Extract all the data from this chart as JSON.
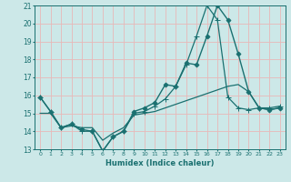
{
  "title": "",
  "xlabel": "Humidex (Indice chaleur)",
  "ylabel": "",
  "xlim": [
    -0.5,
    23.5
  ],
  "ylim": [
    13,
    21
  ],
  "yticks": [
    13,
    14,
    15,
    16,
    17,
    18,
    19,
    20,
    21
  ],
  "xticks": [
    0,
    1,
    2,
    3,
    4,
    5,
    6,
    7,
    8,
    9,
    10,
    11,
    12,
    13,
    14,
    15,
    16,
    17,
    18,
    19,
    20,
    21,
    22,
    23
  ],
  "bg_color": "#cce8e8",
  "grid_color": "#e8b8b8",
  "line_color": "#1a7070",
  "lines": [
    {
      "x": [
        0,
        1,
        2,
        3,
        4,
        5,
        6,
        7,
        8,
        9,
        10,
        11,
        12,
        13,
        14,
        15,
        16,
        17,
        18,
        19,
        20,
        21,
        22,
        23
      ],
      "y": [
        15.9,
        15.1,
        14.2,
        14.4,
        14.1,
        14.0,
        12.9,
        13.7,
        14.0,
        15.1,
        15.3,
        15.6,
        16.6,
        16.5,
        17.8,
        17.7,
        19.3,
        21.0,
        20.2,
        18.3,
        16.2,
        15.3,
        15.2,
        15.3
      ],
      "marker": "D",
      "marker_size": 2.5,
      "linewidth": 1.0
    },
    {
      "x": [
        0,
        1,
        2,
        3,
        4,
        5,
        6,
        7,
        8,
        9,
        10,
        11,
        12,
        13,
        14,
        15,
        16,
        17,
        18,
        19,
        20,
        21,
        22,
        23
      ],
      "y": [
        15.9,
        15.1,
        14.2,
        14.4,
        14.0,
        14.0,
        12.9,
        13.7,
        14.0,
        15.0,
        15.1,
        15.4,
        15.8,
        16.5,
        17.7,
        19.3,
        21.0,
        20.2,
        15.9,
        15.3,
        15.2,
        15.3,
        15.3,
        15.4
      ],
      "marker": "+",
      "marker_size": 4,
      "linewidth": 0.9
    },
    {
      "x": [
        0,
        1,
        2,
        3,
        4,
        5,
        6,
        7,
        8,
        9,
        10,
        11,
        12,
        13,
        14,
        15,
        16,
        17,
        18,
        19,
        20,
        21,
        22,
        23
      ],
      "y": [
        15.0,
        15.0,
        14.2,
        14.3,
        14.2,
        14.2,
        13.5,
        13.9,
        14.2,
        14.9,
        15.0,
        15.1,
        15.3,
        15.5,
        15.7,
        15.9,
        16.1,
        16.3,
        16.5,
        16.6,
        16.2,
        15.3,
        15.2,
        15.3
      ],
      "marker": null,
      "marker_size": 0,
      "linewidth": 0.9
    }
  ]
}
